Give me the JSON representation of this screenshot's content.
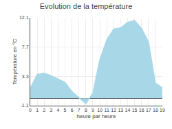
{
  "chart_data": {
    "type": "area",
    "title": "Evolution de la température",
    "xlabel": "heure par heure",
    "ylabel": "Température en °C",
    "x": [
      0,
      1,
      2,
      3,
      4,
      5,
      6,
      7,
      8,
      9,
      10,
      11,
      12,
      13,
      14,
      15,
      16,
      17,
      18,
      19
    ],
    "values": [
      1.5,
      3.6,
      3.8,
      3.4,
      2.9,
      2.4,
      1.0,
      0.1,
      -0.8,
      0.8,
      5.8,
      8.8,
      10.4,
      10.6,
      11.4,
      11.7,
      10.5,
      8.5,
      2.3,
      1.6
    ],
    "color": "#a8d8e8",
    "xlim": [
      0,
      19
    ],
    "xticks": [
      0,
      1,
      2,
      3,
      4,
      5,
      6,
      7,
      8,
      9,
      10,
      11,
      12,
      13,
      14,
      15,
      16,
      17,
      18,
      19
    ],
    "ylim": [
      -1.1,
      12.1
    ],
    "yticks": [
      -1.1,
      3.3,
      7.7,
      12.1
    ],
    "grid": true
  }
}
